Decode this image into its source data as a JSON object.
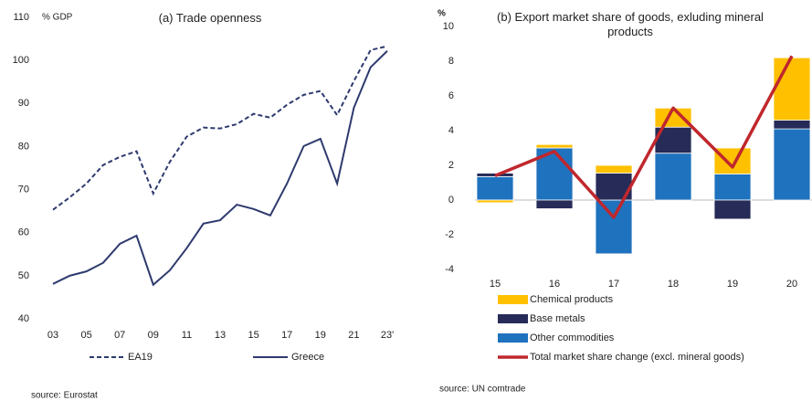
{
  "chart_data": [
    {
      "type": "line",
      "title": "(a) Trade openness",
      "y_label": "% GDP",
      "categories": [
        "03",
        null,
        "05",
        null,
        "07",
        null,
        "09",
        null,
        "11",
        null,
        "13",
        null,
        "15",
        null,
        "17",
        null,
        "19",
        null,
        "21",
        null,
        "23'"
      ],
      "series": [
        {
          "name": "EA19",
          "color": "#2E3A6E",
          "dashed": true,
          "values": [
            65.3,
            68.2,
            71.4,
            75.7,
            77.6,
            78.9,
            69.1,
            76.5,
            82.3,
            84.4,
            84.2,
            85.2,
            87.6,
            86.7,
            89.7,
            92.0,
            92.9,
            87.3,
            95.2,
            102.4,
            103.3
          ]
        },
        {
          "name": "Greece",
          "color": "#2E3A6E",
          "dashed": false,
          "values": [
            48.1,
            50.0,
            51.0,
            53.0,
            57.4,
            59.3,
            47.9,
            51.3,
            56.4,
            62.1,
            62.9,
            66.5,
            65.5,
            64.0,
            71.4,
            80.1,
            81.8,
            71.4,
            89.0,
            98.4,
            102.2
          ]
        }
      ],
      "ylim": [
        40,
        110
      ],
      "yticks": [
        40,
        50,
        60,
        70,
        80,
        90,
        100,
        110
      ],
      "source": "source: Eurostat"
    },
    {
      "type": "bar",
      "stacked": true,
      "title": "(b) Export market share of goods, exluding mineral products",
      "y_label": "%",
      "categories": [
        "15",
        "16",
        "17",
        "18",
        "19",
        "20"
      ],
      "series": [
        {
          "name": "Chemical products",
          "type": "bar",
          "color": "#FFC000",
          "values": [
            -0.15,
            0.2,
            0.45,
            1.1,
            1.5,
            3.6
          ]
        },
        {
          "name": "Base metals",
          "type": "bar",
          "color": "#262B57",
          "values": [
            0.2,
            -0.5,
            1.55,
            1.5,
            -1.1,
            0.5
          ]
        },
        {
          "name": "Other commodities",
          "type": "bar",
          "color": "#1F72BE",
          "values": [
            1.35,
            3.0,
            -3.1,
            2.7,
            1.5,
            4.1
          ]
        },
        {
          "name": "Total market share change (excl. mineral goods)",
          "type": "line",
          "color": "#C0272D",
          "values": [
            1.4,
            2.8,
            -1.0,
            5.3,
            1.9,
            8.3
          ]
        }
      ],
      "ylim": [
        -4,
        10
      ],
      "yticks": [
        -4,
        -2,
        0,
        2,
        4,
        6,
        8,
        10
      ],
      "source": "source: UN comtrade"
    }
  ]
}
